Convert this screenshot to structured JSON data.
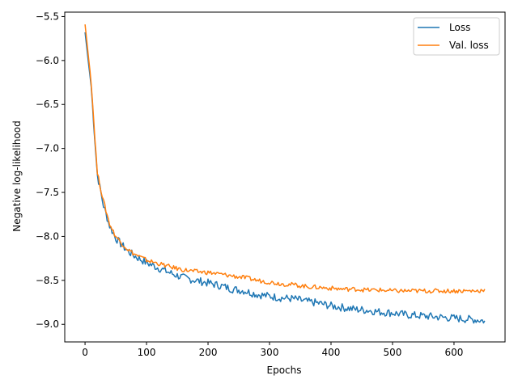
{
  "chart_data": {
    "type": "line",
    "title": "",
    "xlabel": "Epochs",
    "ylabel": "Negative log-likelihood",
    "xlim": [
      -33,
      683
    ],
    "ylim": [
      -9.2,
      -5.45
    ],
    "xticks": [
      0,
      100,
      200,
      300,
      400,
      500,
      600
    ],
    "yticks": [
      -5.5,
      -6.0,
      -6.5,
      -7.0,
      -7.5,
      -8.0,
      -8.5,
      -9.0
    ],
    "ytick_labels": [
      "−5.5",
      "−6.0",
      "−6.5",
      "−7.0",
      "−7.5",
      "−8.0",
      "−8.5",
      "−9.0"
    ],
    "grid": false,
    "legend_position": "top-right",
    "x": [
      0,
      10,
      20,
      30,
      40,
      50,
      60,
      70,
      80,
      100,
      120,
      140,
      160,
      180,
      200,
      220,
      240,
      260,
      280,
      300,
      320,
      340,
      360,
      380,
      400,
      420,
      440,
      460,
      480,
      500,
      520,
      540,
      560,
      580,
      600,
      620,
      640,
      650
    ],
    "series": [
      {
        "name": "Loss",
        "color": "#1f77b4",
        "values": [
          -5.68,
          -6.3,
          -7.3,
          -7.65,
          -7.88,
          -8.02,
          -8.1,
          -8.17,
          -8.22,
          -8.3,
          -8.36,
          -8.42,
          -8.47,
          -8.5,
          -8.53,
          -8.56,
          -8.6,
          -8.62,
          -8.66,
          -8.68,
          -8.7,
          -8.71,
          -8.74,
          -8.76,
          -8.79,
          -8.81,
          -8.83,
          -8.84,
          -8.86,
          -8.87,
          -8.89,
          -8.9,
          -8.91,
          -8.92,
          -8.93,
          -8.94,
          -8.95,
          -8.96
        ]
      },
      {
        "name": "Val. loss",
        "color": "#ff7f0e",
        "values": [
          -5.59,
          -6.25,
          -7.28,
          -7.6,
          -7.86,
          -8.0,
          -8.08,
          -8.15,
          -8.2,
          -8.27,
          -8.31,
          -8.35,
          -8.38,
          -8.4,
          -8.41,
          -8.43,
          -8.45,
          -8.47,
          -8.5,
          -8.52,
          -8.54,
          -8.55,
          -8.57,
          -8.58,
          -8.59,
          -8.6,
          -8.6,
          -8.61,
          -8.61,
          -8.62,
          -8.62,
          -8.62,
          -8.62,
          -8.62,
          -8.62,
          -8.62,
          -8.62,
          -8.6
        ]
      }
    ]
  }
}
